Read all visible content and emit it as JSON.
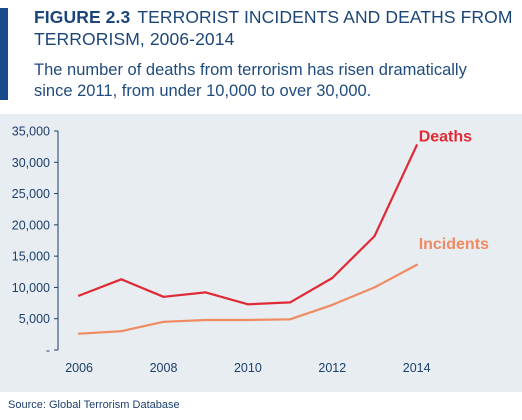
{
  "figure": {
    "label": "FIGURE 2.3",
    "title_line1": "TERRORIST INCIDENTS AND DEATHS FROM",
    "title_line2": "TERRORISM, 2006-2014",
    "subtitle_line1": "The number of deaths from terrorism has risen dramatically",
    "subtitle_line2": "since 2011, from under 10,000 to over 30,000."
  },
  "source": "Source: Global Terrorism Database",
  "chart_data": {
    "type": "line",
    "x": [
      2006,
      2007,
      2008,
      2009,
      2010,
      2011,
      2012,
      2013,
      2014
    ],
    "series": [
      {
        "name": "Deaths",
        "color": "#e02a36",
        "values": [
          8700,
          11300,
          8500,
          9200,
          7300,
          7600,
          11500,
          18200,
          32700
        ]
      },
      {
        "name": "Incidents",
        "color": "#f08a62",
        "values": [
          2600,
          3000,
          4500,
          4800,
          4800,
          4900,
          7200,
          10000,
          13600
        ]
      }
    ],
    "xticks": [
      "2006",
      "2008",
      "2010",
      "2012",
      "2014"
    ],
    "yticks": [
      "-",
      "5,000",
      "10,000",
      "15,000",
      "20,000",
      "25,000",
      "30,000",
      "35,000"
    ],
    "ylim": [
      0,
      35000
    ],
    "xlim": [
      2005.5,
      2015.5
    ],
    "grid": false,
    "legend": "inline labels at line ends",
    "axis_color": "#1c3f6b"
  }
}
